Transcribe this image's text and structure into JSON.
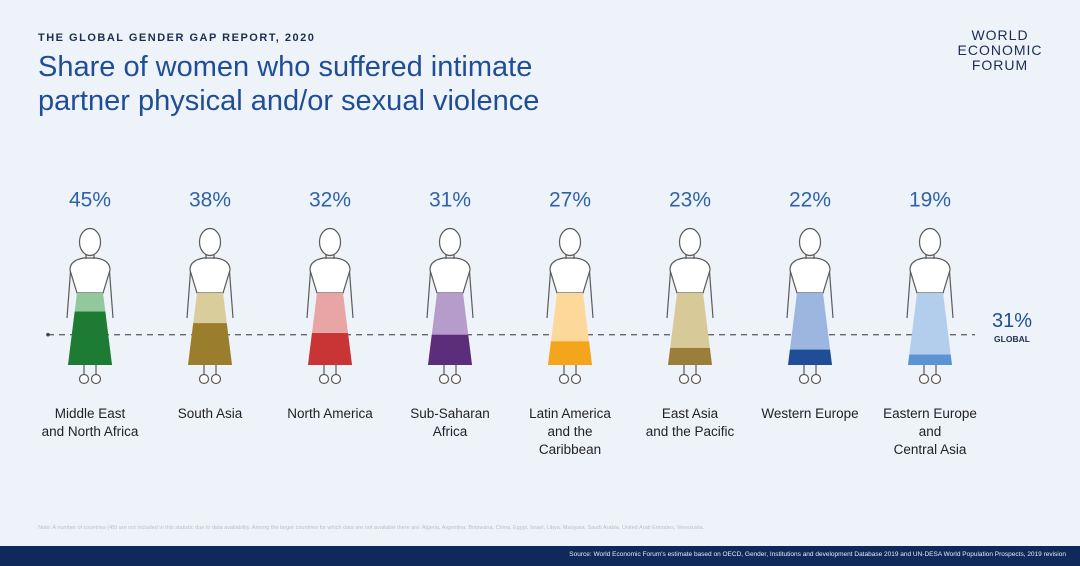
{
  "chart_data": {
    "type": "pictogram",
    "supertitle": "THE GLOBAL GENDER GAP REPORT, 2020",
    "title": "Share of women who suffered intimate partner physical and/or sexual violence",
    "logo": [
      "WORLD",
      "ECONOMIC",
      "FORUM"
    ],
    "categories": [
      "Middle East\nand North Africa",
      "South Asia",
      "North America",
      "Sub-Saharan\nAfrica",
      "Latin America\nand the\nCaribbean",
      "East Asia\nand the Pacific",
      "Western Europe",
      "Eastern Europe\nand\nCentral Asia"
    ],
    "values": [
      45,
      38,
      32,
      31,
      27,
      23,
      22,
      19
    ],
    "value_labels": [
      "45%",
      "38%",
      "32%",
      "31%",
      "27%",
      "23%",
      "22%",
      "19%"
    ],
    "colors": [
      "#1e7b34",
      "#9b7d2e",
      "#c93434",
      "#5c2d7a",
      "#f3a51c",
      "#9a7f3a",
      "#1f4e96",
      "#5b93d3"
    ],
    "light_colors": [
      "#93c89d",
      "#dacd9c",
      "#e9a5a5",
      "#b69cca",
      "#fcd99a",
      "#d8ca98",
      "#9cb6e0",
      "#b3cdec"
    ],
    "ylim": [
      0,
      55
    ],
    "reference": {
      "value": 31,
      "value_label": "31%",
      "label": "GLOBAL"
    },
    "note": "Note: A number of countries (45) are not included in this statistic due to data availability. Among the larger countries for which data are not available there are: Algeria, Argentina, Botswana, China, Egypt, Israel, Libya, Malaysia, Saudi Arabia, United Arab Emirates, Venezuela.",
    "source": "Source: World Economic Forum's estimate based on OECD, Gender, Institutions and development Database 2019 and UN-DESA World Population Prospects, 2019 revision"
  }
}
